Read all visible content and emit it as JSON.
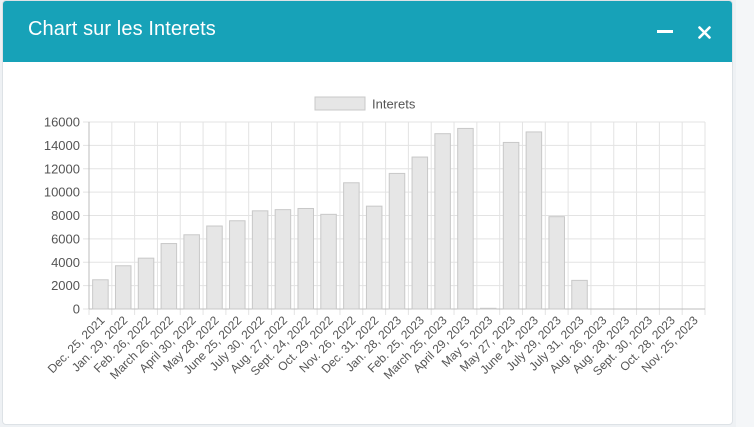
{
  "panel": {
    "title": "Chart sur les Interets",
    "minimize_icon": "minus-icon",
    "close_icon": "x-icon",
    "header_color": "#17a2b8"
  },
  "chart_data": {
    "type": "bar",
    "title": "",
    "xlabel": "",
    "ylabel": "",
    "ylim": [
      0,
      16000
    ],
    "yticks": [
      0,
      2000,
      4000,
      6000,
      8000,
      10000,
      12000,
      14000,
      16000
    ],
    "grid": true,
    "legend_position": "top",
    "categories": [
      "Dec. 25, 2021",
      "Jan. 29, 2022",
      "Feb. 26, 2022",
      "March 26, 2022",
      "April 30, 2022",
      "May 28, 2022",
      "June 25, 2022",
      "July 30, 2022",
      "Aug. 27, 2022",
      "Sept. 24, 2022",
      "Oct. 29, 2022",
      "Nov. 26, 2022",
      "Dec. 31, 2022",
      "Jan. 28, 2023",
      "Feb. 25, 2023",
      "March 25, 2023",
      "April 29, 2023",
      "May 5, 2023",
      "May 27, 2023",
      "June 24, 2023",
      "July 29, 2023",
      "July 31, 2023",
      "Aug. 26, 2023",
      "Aug. 28, 2023",
      "Sept. 30, 2023",
      "Oct. 28, 2023",
      "Nov. 25, 2023"
    ],
    "series": [
      {
        "name": "Interets",
        "color": "#e6e6e6",
        "border_color": "#c8c8c8",
        "values": [
          2500,
          3700,
          4350,
          5600,
          6350,
          7100,
          7550,
          8400,
          8500,
          8600,
          8100,
          10800,
          8800,
          11600,
          13000,
          15000,
          15450,
          60,
          14250,
          15150,
          7900,
          2450,
          0,
          0,
          0,
          0,
          0
        ]
      }
    ]
  }
}
